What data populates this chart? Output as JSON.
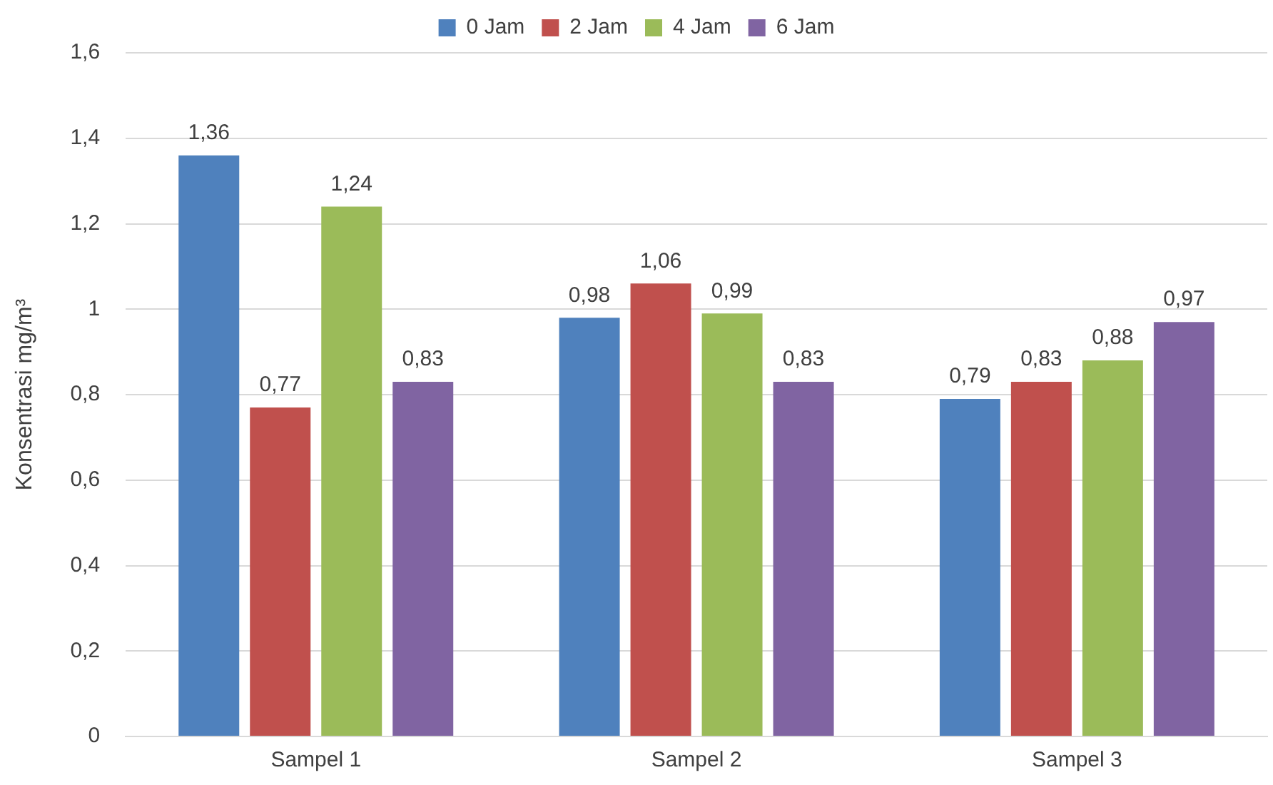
{
  "chart_data": {
    "type": "bar",
    "ylabel": "Konsentrasi mg/m³",
    "categories": [
      "Sampel 1",
      "Sampel 2",
      "Sampel 3"
    ],
    "series": [
      {
        "name": "0 Jam",
        "color": "#4f81bd",
        "values": [
          1.36,
          0.98,
          0.79
        ],
        "value_labels": [
          "1,36",
          "0,98",
          "0,79"
        ]
      },
      {
        "name": "2 Jam",
        "color": "#c0504d",
        "values": [
          0.77,
          1.06,
          0.83
        ],
        "value_labels": [
          "0,77",
          "1,06",
          "0,83"
        ]
      },
      {
        "name": "4 Jam",
        "color": "#9bbb59",
        "values": [
          1.24,
          0.99,
          0.88
        ],
        "value_labels": [
          "1,24",
          "0,99",
          "0,88"
        ]
      },
      {
        "name": "6 Jam",
        "color": "#8064a2",
        "values": [
          0.83,
          0.83,
          0.97
        ],
        "value_labels": [
          "0,83",
          "0,83",
          "0,97"
        ]
      }
    ],
    "ylim": [
      0,
      1.6
    ],
    "yticks": [
      0,
      {
        "value": 0.2,
        "label": "0,2"
      },
      {
        "value": 0.4,
        "label": "0,4"
      },
      {
        "value": 0.6,
        "label": "0,6"
      },
      {
        "value": 0.8,
        "label": "0,8"
      },
      1,
      {
        "value": 1.2,
        "label": "1,2"
      },
      {
        "value": 1.4,
        "label": "1,4"
      },
      {
        "value": 1.6,
        "label": "1,6"
      }
    ],
    "grid": "y",
    "legend": "top"
  }
}
